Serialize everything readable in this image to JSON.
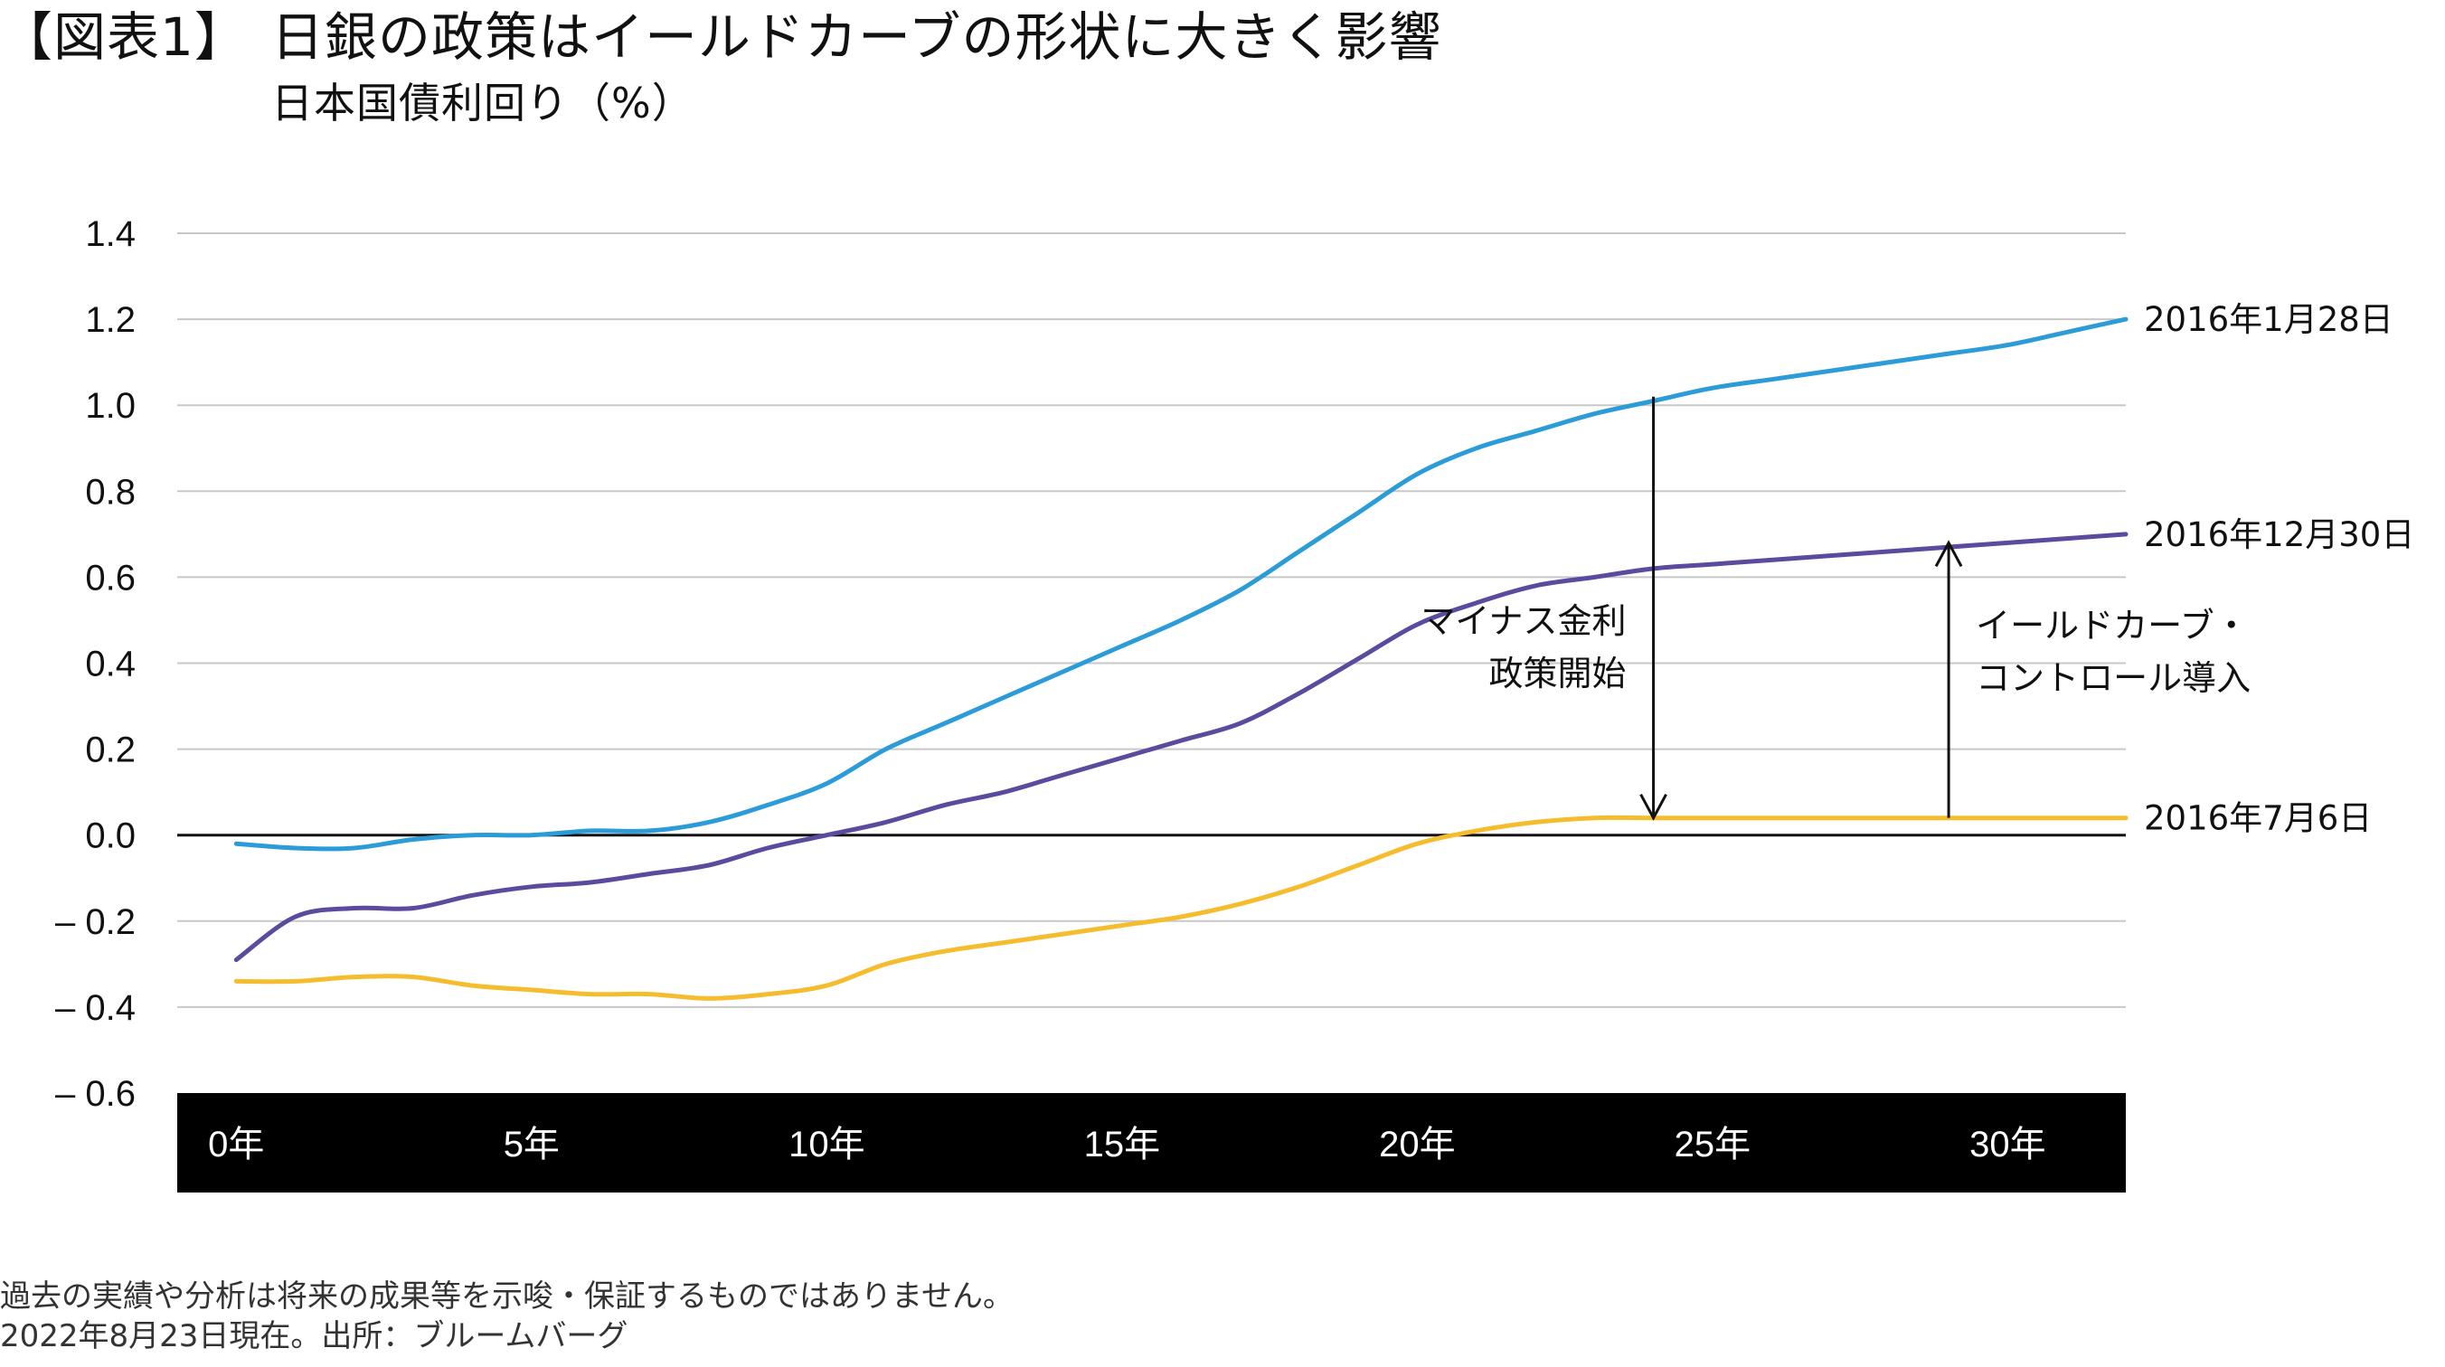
{
  "header": {
    "label": "【図表1】",
    "title": "日銀の政策はイールドカーブの形状に大きく影響",
    "subtitle": "日本国債利回り（%）"
  },
  "footer": {
    "note": "過去の実績や分析は将来の成果等を示唆・保証するものではありません。",
    "source": "2022年8月23日現在。出所：ブルームバーグ"
  },
  "colors": {
    "blue": "#2b9cd8",
    "purple": "#5b4a9e",
    "yellow": "#f5bd2e",
    "axis_band": "#000000",
    "grid": "#c8c8c8"
  },
  "chart_data": {
    "type": "line",
    "title": "日本国債利回り（%）",
    "xlabel": "",
    "ylabel": "%",
    "xlim": [
      -1,
      32
    ],
    "ylim": [
      -0.6,
      1.4
    ],
    "yticks": [
      1.4,
      1.2,
      1.0,
      0.8,
      0.6,
      0.4,
      0.2,
      0.0,
      -0.2,
      -0.4,
      -0.6
    ],
    "ytick_labels": [
      "1.4",
      "1.2",
      "1.0",
      "0.8",
      "0.6",
      "0.4",
      "0.2",
      "0.0",
      "– 0.2",
      "– 0.4",
      "– 0.6"
    ],
    "xticks": [
      0,
      5,
      10,
      15,
      20,
      25,
      30
    ],
    "xtick_labels": [
      "0年",
      "5年",
      "10年",
      "15年",
      "20年",
      "25年",
      "30年"
    ],
    "x": [
      0,
      1,
      2,
      3,
      4,
      5,
      6,
      7,
      8,
      9,
      10,
      11,
      12,
      13,
      14,
      15,
      16,
      17,
      18,
      19,
      20,
      21,
      22,
      23,
      24,
      25,
      26,
      27,
      28,
      29,
      30,
      31,
      32
    ],
    "series": [
      {
        "name": "2016年1月28日",
        "color": "#2b9cd8",
        "values": [
          -0.02,
          -0.03,
          -0.03,
          -0.01,
          0.0,
          0.0,
          0.01,
          0.01,
          0.03,
          0.07,
          0.12,
          0.2,
          0.26,
          0.32,
          0.38,
          0.44,
          0.5,
          0.57,
          0.66,
          0.75,
          0.84,
          0.9,
          0.94,
          0.98,
          1.01,
          1.04,
          1.06,
          1.08,
          1.1,
          1.12,
          1.14,
          1.17,
          1.2
        ]
      },
      {
        "name": "2016年12月30日",
        "color": "#5b4a9e",
        "values": [
          -0.29,
          -0.19,
          -0.17,
          -0.17,
          -0.14,
          -0.12,
          -0.11,
          -0.09,
          -0.07,
          -0.03,
          0.0,
          0.03,
          0.07,
          0.1,
          0.14,
          0.18,
          0.22,
          0.26,
          0.33,
          0.41,
          0.49,
          0.54,
          0.58,
          0.6,
          0.62,
          0.63,
          0.64,
          0.65,
          0.66,
          0.67,
          0.68,
          0.69,
          0.7
        ]
      },
      {
        "name": "2016年7月6日",
        "color": "#f5bd2e",
        "values": [
          -0.34,
          -0.34,
          -0.33,
          -0.33,
          -0.35,
          -0.36,
          -0.37,
          -0.37,
          -0.38,
          -0.37,
          -0.35,
          -0.3,
          -0.27,
          -0.25,
          -0.23,
          -0.21,
          -0.19,
          -0.16,
          -0.12,
          -0.07,
          -0.02,
          0.01,
          0.03,
          0.04,
          0.04,
          0.04,
          0.04,
          0.04,
          0.04,
          0.04,
          0.04,
          0.04,
          0.04
        ]
      }
    ],
    "annotations": [
      {
        "text_lines": [
          "マイナス金利",
          "政策開始"
        ],
        "x": 24,
        "from": 1.02,
        "to": 0.04,
        "direction": "down"
      },
      {
        "text_lines": [
          "イールドカーブ・",
          "コントロール導入"
        ],
        "x": 29,
        "from": 0.04,
        "to": 0.68,
        "direction": "up"
      }
    ],
    "legend": "end-of-line labels",
    "grid": true
  }
}
